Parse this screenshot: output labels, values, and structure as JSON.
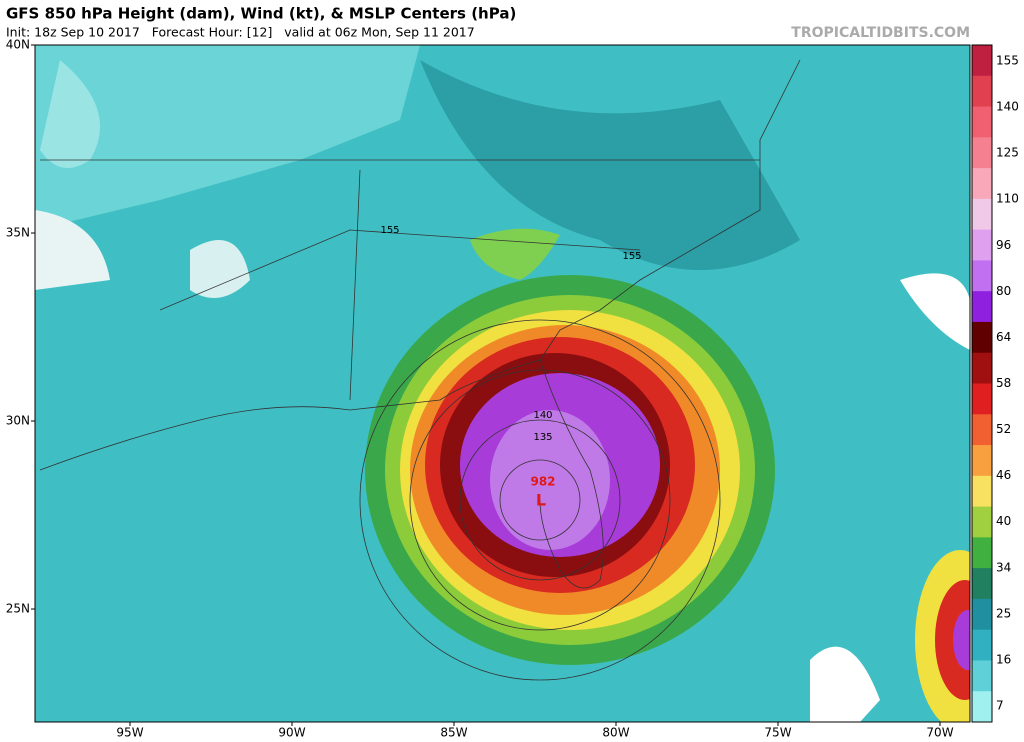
{
  "header": {
    "title": "GFS 850 hPa Height (dam), Wind (kt), & MSLP Centers (hPa)",
    "subtitle": "Init: 18z Sep 10 2017   Forecast Hour: [12]   valid at 06z Mon, Sep 11 2017",
    "watermark": "TROPICALTIDBITS.COM"
  },
  "map": {
    "lat_labels": [
      {
        "value": 40,
        "label": "40N"
      },
      {
        "value": 35,
        "label": "35N"
      },
      {
        "value": 30,
        "label": "30N"
      },
      {
        "value": 25,
        "label": "25N"
      }
    ],
    "lon_labels": [
      {
        "value": 95,
        "label": "95W"
      },
      {
        "value": 90,
        "label": "90W"
      },
      {
        "value": 85,
        "label": "85W"
      },
      {
        "value": 80,
        "label": "80W"
      },
      {
        "value": 75,
        "label": "75W"
      },
      {
        "value": 70,
        "label": "70W"
      }
    ],
    "contour_labels": [
      "155",
      "155",
      "140",
      "135"
    ],
    "low_pressure": "982",
    "low_symbol": "L"
  },
  "colorbar": {
    "labels": [
      155,
      140,
      125,
      110,
      96,
      80,
      64,
      58,
      52,
      46,
      40,
      34,
      25,
      16,
      7
    ]
  }
}
